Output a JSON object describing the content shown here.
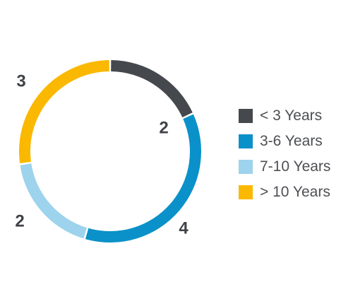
{
  "chart_data": {
    "type": "pie",
    "variant": "donut",
    "title": "",
    "categories": [
      "< 3 Years",
      "3-6 Years",
      "7-10 Years",
      "> 10 Years"
    ],
    "values": [
      2,
      4,
      2,
      3
    ],
    "data_labels": [
      "2",
      "4",
      "2",
      "3"
    ],
    "colors": [
      "#45484c",
      "#0a91c9",
      "#9dd3ec",
      "#fbb800"
    ],
    "legend_placement": "right",
    "start_angle_deg": 0,
    "direction": "clockwise"
  }
}
